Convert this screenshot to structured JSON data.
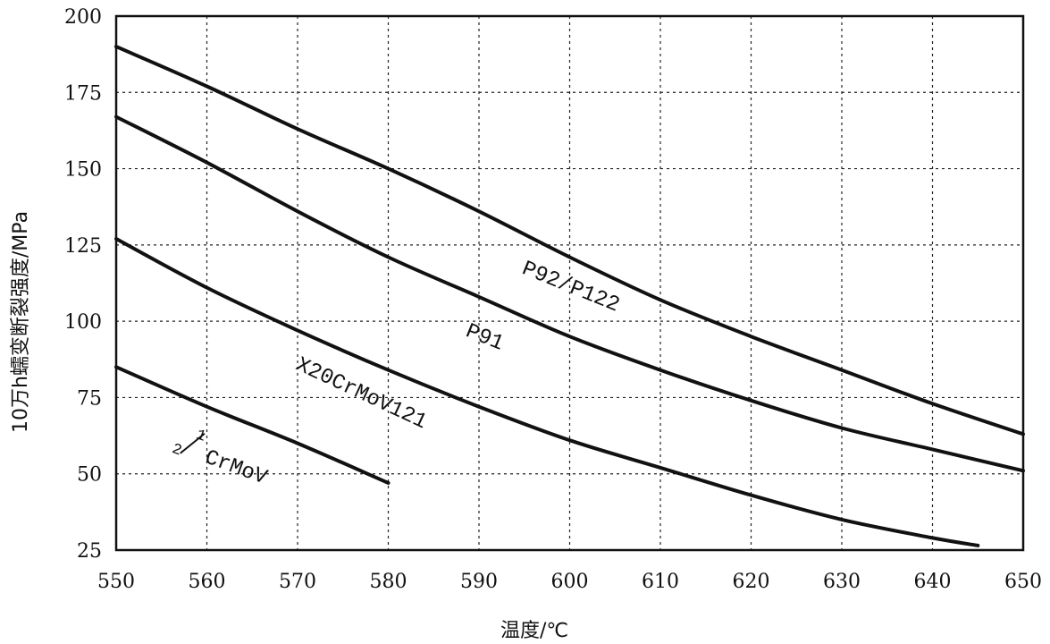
{
  "chart_data": {
    "type": "line",
    "xlabel": "温度/℃",
    "ylabel": "10万h蠕变断裂强度/MPa",
    "xlim": [
      550,
      650
    ],
    "ylim": [
      25,
      200
    ],
    "x_ticks": [
      "550",
      "560",
      "570",
      "580",
      "590",
      "600",
      "610",
      "620",
      "630",
      "640",
      "650"
    ],
    "y_ticks": [
      "200",
      "175",
      "150",
      "125",
      "100",
      "75",
      "50",
      "25"
    ],
    "grid": true,
    "series": [
      {
        "name": "P92/P122",
        "x": [
          550,
          560,
          570,
          580,
          590,
          600,
          610,
          620,
          630,
          640,
          650
        ],
        "y": [
          190,
          177,
          163,
          150,
          136,
          121,
          107,
          95,
          84,
          73,
          63
        ]
      },
      {
        "name": "P91",
        "x": [
          550,
          560,
          570,
          580,
          590,
          600,
          610,
          620,
          630,
          640,
          650
        ],
        "y": [
          167,
          152,
          136,
          121,
          108,
          95,
          84,
          74,
          65,
          58,
          51
        ]
      },
      {
        "name": "X20CrMoV121",
        "x": [
          550,
          560,
          570,
          580,
          590,
          600,
          610,
          620,
          630,
          640,
          645
        ],
        "y": [
          127,
          111,
          97,
          84,
          72,
          61,
          52,
          43,
          35,
          29,
          26.5
        ]
      },
      {
        "name_parts": {
          "num": "1",
          "den": "2",
          "text": "CrMoV"
        },
        "x": [
          550,
          560,
          570,
          580
        ],
        "y": [
          85,
          72,
          60,
          47
        ]
      }
    ]
  }
}
